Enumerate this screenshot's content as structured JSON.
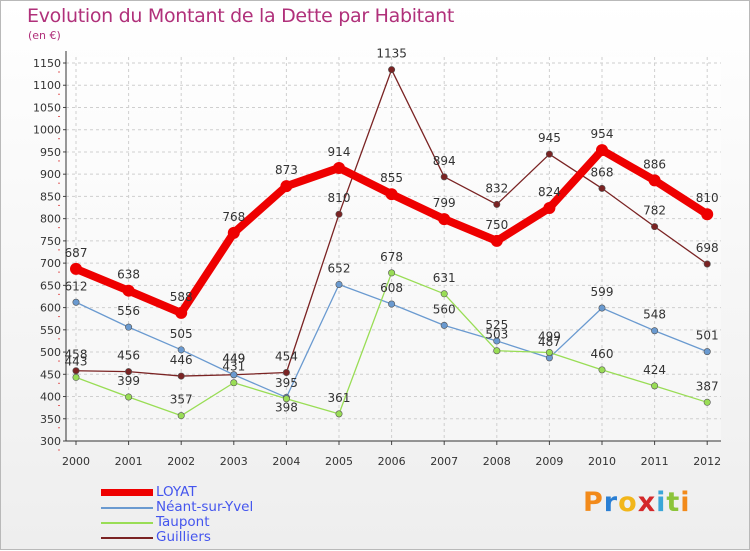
{
  "header": {
    "title": "Evolution du Montant de la Dette par Habitant",
    "unit": "(en €)"
  },
  "logo": {
    "text": "Proxiti",
    "letters": [
      "P",
      "r",
      "o",
      "x",
      "i",
      "t",
      "i"
    ],
    "colors": [
      "#f28a1a",
      "#2a7fd4",
      "#f2b61a",
      "#d4282a",
      "#3aa6d8",
      "#8cc43a",
      "#f28a1a"
    ]
  },
  "chart_data": {
    "type": "line",
    "title": "Evolution du Montant de la Dette par Habitant",
    "ylabel": "(en €)",
    "x": [
      "2000",
      "2001",
      "2002",
      "2003",
      "2004",
      "2005",
      "2006",
      "2007",
      "2008",
      "2009",
      "2010",
      "2011",
      "2012"
    ],
    "ylim": [
      300,
      1150
    ],
    "yticks": [
      300,
      350,
      400,
      450,
      500,
      550,
      600,
      650,
      700,
      750,
      800,
      850,
      900,
      950,
      1000,
      1050,
      1100,
      1150
    ],
    "grid": true,
    "legend_position": "bottom-left",
    "series": [
      {
        "name": "LOYAT",
        "color": "#ee0000",
        "values": [
          687,
          638,
          588,
          768,
          873,
          914,
          855,
          799,
          750,
          824,
          954,
          886,
          810
        ]
      },
      {
        "name": "Néant-sur-Yvel",
        "color": "#6a9ad0",
        "values": [
          612,
          556,
          505,
          449,
          398,
          652,
          608,
          560,
          525,
          487,
          599,
          548,
          501
        ]
      },
      {
        "name": "Taupont",
        "color": "#99dd55",
        "values": [
          443,
          399,
          357,
          431,
          395,
          361,
          678,
          631,
          503,
          499,
          460,
          424,
          387
        ]
      },
      {
        "name": "Guilliers",
        "color": "#7a2323",
        "values": [
          458,
          456,
          446,
          449,
          454,
          810,
          1135,
          894,
          832,
          945,
          868,
          782,
          698
        ]
      }
    ]
  }
}
